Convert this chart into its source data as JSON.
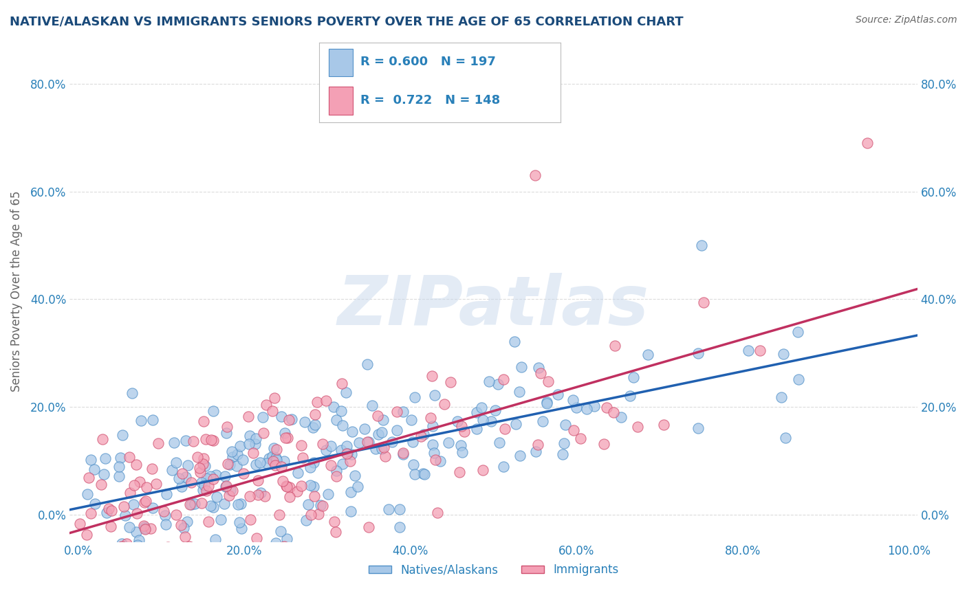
{
  "title": "NATIVE/ALASKAN VS IMMIGRANTS SENIORS POVERTY OVER THE AGE OF 65 CORRELATION CHART",
  "source": "Source: ZipAtlas.com",
  "ylabel": "Seniors Poverty Over the Age of 65",
  "xlim": [
    -0.01,
    1.01
  ],
  "ylim": [
    -0.05,
    0.88
  ],
  "native_color_face": "#a8c8e8",
  "native_color_edge": "#5090c8",
  "immigrant_color_face": "#f4a0b5",
  "immigrant_color_edge": "#d05070",
  "native_line_color": "#2060b0",
  "immigrant_line_color": "#c03060",
  "R_native": 0.6,
  "N_native": 197,
  "R_immigrant": 0.722,
  "N_immigrant": 148,
  "legend_labels": [
    "Natives/Alaskans",
    "Immigrants"
  ],
  "watermark": "ZIPatlas",
  "background_color": "#ffffff",
  "grid_color": "#cccccc",
  "title_color": "#1a4a7a",
  "tick_label_color": "#2980b9",
  "label_color": "#666666",
  "x_ticks": [
    0.0,
    0.2,
    0.4,
    0.6,
    0.8,
    1.0
  ],
  "y_ticks": [
    0.0,
    0.2,
    0.4,
    0.6,
    0.8
  ],
  "native_seed": 10,
  "immigrant_seed": 25
}
